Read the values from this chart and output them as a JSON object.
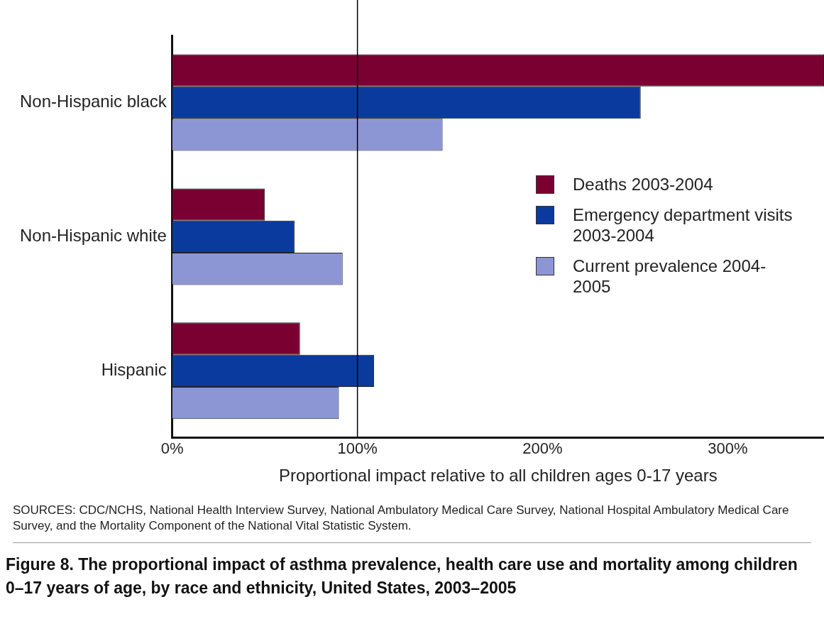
{
  "chart_data": {
    "type": "bar",
    "orientation": "horizontal",
    "title": "Figure 8. The proportional impact of asthma prevalence, health care use and mortality among children 0–17 years of age, by race and ethnicity, United States, 2003–2005",
    "xlabel": "Proportional impact relative to all children ages 0-17 years",
    "categories": [
      "Non-Hispanic black",
      "Non-Hispanic white",
      "Hispanic"
    ],
    "series": [
      {
        "name": "Deaths 2003-2004",
        "color": "#7b0032",
        "values": [
          352,
          50,
          69
        ]
      },
      {
        "name": "Emergency department visits 2003-2004",
        "color": "#0a3a9e",
        "values": [
          253,
          66,
          109
        ]
      },
      {
        "name": "Current prevalence 2004-2005",
        "color": "#8c96d4",
        "values": [
          146,
          92,
          90
        ]
      }
    ],
    "xlim": [
      0,
      352
    ],
    "xticks": [
      {
        "value": 0,
        "label": "0%"
      },
      {
        "value": 100,
        "label": "100%"
      },
      {
        "value": 200,
        "label": "200%"
      },
      {
        "value": 300,
        "label": "300%"
      }
    ],
    "ref_lines": [
      {
        "axis": "x",
        "value": 100,
        "color": "#000000"
      }
    ],
    "grid": false,
    "legend": "right",
    "annotations": [
      "SOURCES:  CDC/NCHS, National Health Interview Survey, National Ambulatory Medical Care Survey, National Hospital Ambulatory Medical Care Survey, and the Mortality Component of the National Vital Statistic System."
    ]
  }
}
